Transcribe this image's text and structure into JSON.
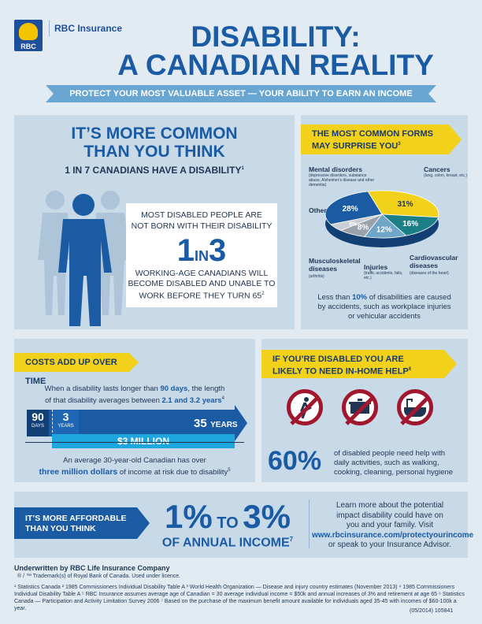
{
  "header": {
    "logo_text": "RBC",
    "brand": "RBC Insurance",
    "title_line1": "DISABILITY:",
    "title_line2": "A CANADIAN REALITY",
    "tagline": "PROTECT YOUR MOST VALUABLE ASSET — YOUR ABILITY TO EARN AN INCOME"
  },
  "common": {
    "heading1": "IT’S MORE COMMON",
    "heading2": "THAN YOU THINK",
    "stat": "1 IN 7 CANADIANS HAVE A DISABILITY",
    "stat_sup": "1",
    "box_text1": "MOST DISABLED PEOPLE ARE",
    "box_text2": "NOT BORN WITH THEIR DISABILITY",
    "big_one": "1",
    "big_in": "IN",
    "big_three": "3",
    "box_text3": "WORKING-AGE CANADIANS WILL",
    "box_text4": "BECOME DISABLED AND UNABLE TO",
    "box_text5": "WORK BEFORE THEY TURN 65",
    "box_sup": "2"
  },
  "forms": {
    "tab1": "THE MOST COMMON FORMS",
    "tab2": "MAY SURPRISE YOU",
    "tab_sup": "3",
    "chart_data": {
      "type": "pie",
      "slices": [
        {
          "label": "Mental disorders",
          "sub": "(depressive disorders, substance abuse, Alzheimer’s disease and other dementia)",
          "value": 31,
          "display": "31%",
          "color": "#f2d11b"
        },
        {
          "label": "Cancers",
          "sub": "(lung, colon, breast, etc.)",
          "value": 16,
          "display": "16%",
          "color": "#1c7f86"
        },
        {
          "label": "Cardiovascular diseases",
          "sub": "(diseases of the heart)",
          "value": 12,
          "display": "12%",
          "color": "#6fa6c7"
        },
        {
          "label": "Injuries",
          "sub": "(traffic accidents, falls, etc.)",
          "value": 8,
          "display": "8%",
          "color": "#9aa3ab"
        },
        {
          "label": "Musculoskeletal diseases",
          "sub": "(arthritis)",
          "value": 5,
          "display": "5%",
          "color": "#c9ced4"
        },
        {
          "label": "Other",
          "sub": "",
          "value": 28,
          "display": "28%",
          "color": "#1a5ba4"
        }
      ]
    },
    "note1": "Less than",
    "note_bold": "10%",
    "note2": "of disabilities are caused",
    "note3": "by accidents, such as workplace injuries",
    "note4": "or vehicular accidents"
  },
  "costs": {
    "tab": "COSTS ADD UP OVER TIME",
    "text1": "When a disability lasts longer than",
    "text1b": "90 days",
    "text1c": ", the length",
    "text2": "of that disability averages between",
    "text2b": "2.1 and 3.2 years",
    "text2_sup": "4",
    "seg1_num": "90",
    "seg1_unit": "DAYS",
    "seg2_num": "3",
    "seg2_unit": "YEARS",
    "seg3_num": "35",
    "seg3_unit": "YEARS",
    "million": "$3 MILLION",
    "foot1": "An average 30-year-old Canadian has over",
    "foot2b": "three million dollars",
    "foot2": "of income at risk due to disability",
    "foot_sup": "5"
  },
  "help": {
    "tab1": "IF YOU’RE DISABLED YOU ARE",
    "tab2": "LIKELY TO NEED IN-HOME HELP",
    "tab_sup": "6",
    "icons": [
      "no-walking-icon",
      "no-cooking-icon",
      "no-bathing-icon"
    ],
    "big": "60%",
    "text1": "of disabled people need help with",
    "text2": "daily activities, such as walking,",
    "text3": "cooking, cleaning, personal hygiene"
  },
  "afford": {
    "arrow1": "IT’S MORE AFFORDABLE",
    "arrow2": "THAN YOU THINK",
    "big1": "1%",
    "big_to": "TO",
    "big2": "3%",
    "sub": "OF ANNUAL INCOME",
    "sub_sup": "7",
    "learn1": "Learn more about the potential",
    "learn2": "impact disability could have on",
    "learn3": "you and your family. Visit",
    "link": "www.rbcinsurance.com/protectyourincome",
    "learn4": "or speak to your Insurance Advisor."
  },
  "footer": {
    "underwritten": "Underwritten by RBC Life Insurance Company",
    "trademark": "® / ™ Trademark(s) of Royal Bank of Canada. Used under licence.",
    "fn1": "¹ Statistics Canada  ² 1985 Commissioners Individual Disability Table A  ³ World Health Organization — Disease and injury country estimates (November 2013)  ⁴ 1985 Commissioners",
    "fn2": "Individual Disability Table A  ⁵ RBC Insurance assumes average age of Canadian = 30 average individual income = $50k and annual increases of 3% and retirement at age 65  ⁶ Statistics",
    "fn3": "Canada — Participation and Activity Limitation Survey 2006  ⁷ Based on the purchase of the maximum benefit amount available for individuals aged 35-45 with incomes of $60-100k a year.",
    "code": "(05/2014) 105841"
  }
}
